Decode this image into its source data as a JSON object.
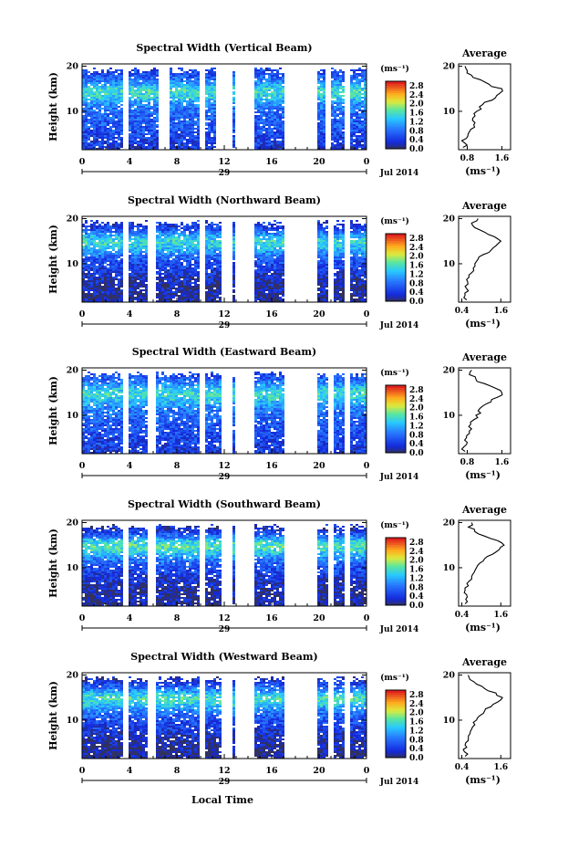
{
  "figure": {
    "bottom_label": "Local Time",
    "date_label": "Jul 2014",
    "day_label": "29",
    "unit_label": "(ms⁻¹)",
    "avg_title": "Average",
    "height_label": "Height (km)"
  },
  "chart_data": [
    {
      "type": "heatmap",
      "title": "Spectral Width (Vertical Beam)",
      "ylabel": "Height (km)",
      "x_ticks": [
        "0",
        "4",
        "8",
        "12",
        "16",
        "20",
        "0"
      ],
      "y_ticks": [
        "20",
        "10"
      ],
      "xlim": [
        0,
        24
      ],
      "ylim": [
        1.5,
        20.5
      ],
      "colorbar": {
        "ticks": [
          "2.8",
          "2.4",
          "2.0",
          "1.6",
          "1.2",
          "0.8",
          "0.4",
          "0.0"
        ],
        "range": [
          0.0,
          3.0
        ]
      },
      "data_gaps_hours": [
        [
          3.4,
          3.8
        ],
        [
          6.4,
          7.2
        ],
        [
          9.7,
          10.3
        ],
        [
          11.2,
          12.5
        ],
        [
          12.7,
          14.5
        ],
        [
          17.0,
          19.8
        ],
        [
          20.5,
          20.9
        ],
        [
          22.1,
          22.5
        ]
      ],
      "average_profile": {
        "title": "Average",
        "xlabel": "(ms⁻¹)",
        "x_ticks": [
          "0.8",
          "1.6"
        ],
        "xlim": [
          0.6,
          1.8
        ],
        "heights_km": [
          2,
          3,
          4,
          5,
          6,
          7,
          8,
          9,
          10,
          11,
          12,
          13,
          14,
          15,
          16,
          17,
          18,
          19,
          20
        ],
        "values": [
          0.7,
          0.74,
          0.78,
          0.82,
          0.88,
          0.95,
          0.92,
          0.98,
          1.02,
          1.08,
          1.2,
          1.45,
          1.55,
          1.6,
          1.3,
          1.1,
          0.9,
          0.8,
          0.75
        ]
      }
    },
    {
      "type": "heatmap",
      "title": "Spectral Width (Northward Beam)",
      "ylabel": "Height (km)",
      "x_ticks": [
        "0",
        "4",
        "8",
        "12",
        "16",
        "20",
        "0"
      ],
      "y_ticks": [
        "20",
        "10"
      ],
      "xlim": [
        0,
        24
      ],
      "ylim": [
        1.5,
        20.5
      ],
      "colorbar": {
        "ticks": [
          "2.8",
          "2.4",
          "2.0",
          "1.6",
          "1.2",
          "0.8",
          "0.4",
          "0.0"
        ],
        "range": [
          0.0,
          3.0
        ]
      },
      "data_gaps_hours": [
        [
          3.4,
          3.8
        ],
        [
          5.5,
          6.1
        ],
        [
          9.7,
          10.3
        ],
        [
          11.6,
          12.5
        ],
        [
          12.7,
          14.5
        ],
        [
          17.0,
          19.8
        ],
        [
          20.6,
          21.0
        ],
        [
          22.1,
          22.5
        ]
      ],
      "average_profile": {
        "title": "Average",
        "xlabel": "(ms⁻¹)",
        "x_ticks": [
          "0.4",
          "1.6"
        ],
        "xlim": [
          0.3,
          1.9
        ],
        "heights_km": [
          2,
          3,
          4,
          5,
          6,
          7,
          8,
          9,
          10,
          11,
          12,
          13,
          14,
          15,
          16,
          17,
          18,
          19,
          20
        ],
        "values": [
          0.55,
          0.5,
          0.6,
          0.5,
          0.58,
          0.62,
          0.7,
          0.75,
          0.8,
          0.9,
          1.05,
          1.3,
          1.45,
          1.6,
          1.4,
          1.1,
          0.8,
          0.7,
          0.9
        ]
      }
    },
    {
      "type": "heatmap",
      "title": "Spectral Width (Eastward Beam)",
      "ylabel": "Height (km)",
      "x_ticks": [
        "0",
        "4",
        "8",
        "12",
        "16",
        "20",
        "0"
      ],
      "y_ticks": [
        "20",
        "10"
      ],
      "xlim": [
        0,
        24
      ],
      "ylim": [
        1.5,
        20.5
      ],
      "colorbar": {
        "ticks": [
          "2.8",
          "2.4",
          "2.0",
          "1.6",
          "1.2",
          "0.8",
          "0.4",
          "0.0"
        ],
        "range": [
          0.0,
          3.0
        ]
      },
      "data_gaps_hours": [
        [
          3.4,
          3.8
        ],
        [
          5.5,
          6.1
        ],
        [
          9.7,
          10.3
        ],
        [
          11.6,
          12.5
        ],
        [
          12.7,
          14.5
        ],
        [
          17.0,
          19.8
        ],
        [
          20.6,
          21.0
        ],
        [
          22.1,
          22.5
        ]
      ],
      "average_profile": {
        "title": "Average",
        "xlabel": "(ms⁻¹)",
        "x_ticks": [
          "0.8",
          "1.6"
        ],
        "xlim": [
          0.6,
          1.8
        ],
        "heights_km": [
          2,
          3,
          4,
          5,
          6,
          7,
          8,
          9,
          10,
          11,
          12,
          13,
          14,
          15,
          16,
          17,
          18,
          19,
          20
        ],
        "values": [
          0.75,
          0.72,
          0.8,
          0.78,
          0.85,
          0.9,
          0.88,
          0.95,
          1.0,
          1.05,
          1.15,
          1.35,
          1.5,
          1.6,
          1.45,
          1.2,
          1.0,
          0.85,
          0.9
        ]
      }
    },
    {
      "type": "heatmap",
      "title": "Spectral Width (Southward Beam)",
      "ylabel": "Height (km)",
      "x_ticks": [
        "0",
        "4",
        "8",
        "12",
        "16",
        "20",
        "0"
      ],
      "y_ticks": [
        "20",
        "10"
      ],
      "xlim": [
        0,
        24
      ],
      "ylim": [
        1.5,
        20.5
      ],
      "colorbar": {
        "ticks": [
          "2.8",
          "2.4",
          "2.0",
          "1.6",
          "1.2",
          "0.8",
          "0.4",
          "0.0"
        ],
        "range": [
          0.0,
          3.0
        ]
      },
      "data_gaps_hours": [
        [
          3.4,
          3.8
        ],
        [
          5.5,
          6.1
        ],
        [
          9.7,
          10.3
        ],
        [
          11.6,
          12.5
        ],
        [
          12.7,
          14.5
        ],
        [
          17.0,
          19.8
        ],
        [
          20.6,
          21.0
        ],
        [
          22.1,
          22.5
        ]
      ],
      "average_profile": {
        "title": "Average",
        "xlabel": "(ms⁻¹)",
        "x_ticks": [
          "0.4",
          "1.6"
        ],
        "xlim": [
          0.3,
          1.9
        ],
        "heights_km": [
          2,
          3,
          4,
          5,
          6,
          7,
          8,
          9,
          10,
          11,
          12,
          13,
          14,
          15,
          16,
          17,
          18,
          19,
          20
        ],
        "values": [
          0.5,
          0.52,
          0.55,
          0.5,
          0.6,
          0.62,
          0.7,
          0.78,
          0.85,
          0.95,
          1.1,
          1.35,
          1.55,
          1.7,
          1.5,
          1.1,
          0.8,
          0.6,
          0.7
        ]
      }
    },
    {
      "type": "heatmap",
      "title": "Spectral Width (Westward Beam)",
      "ylabel": "Height (km)",
      "x_ticks": [
        "0",
        "4",
        "8",
        "12",
        "16",
        "20",
        "0"
      ],
      "y_ticks": [
        "20",
        "10"
      ],
      "xlim": [
        0,
        24
      ],
      "ylim": [
        1.5,
        20.5
      ],
      "colorbar": {
        "ticks": [
          "2.8",
          "2.4",
          "2.0",
          "1.6",
          "1.2",
          "0.8",
          "0.4",
          "0.0"
        ],
        "range": [
          0.0,
          3.0
        ]
      },
      "data_gaps_hours": [
        [
          3.4,
          3.8
        ],
        [
          5.5,
          6.1
        ],
        [
          9.7,
          10.3
        ],
        [
          11.6,
          12.5
        ],
        [
          12.7,
          14.5
        ],
        [
          17.0,
          19.8
        ],
        [
          20.6,
          21.0
        ],
        [
          22.1,
          22.5
        ]
      ],
      "average_profile": {
        "title": "Average",
        "xlabel": "(ms⁻¹)",
        "x_ticks": [
          "0.4",
          "1.6"
        ],
        "xlim": [
          0.3,
          1.9
        ],
        "heights_km": [
          2,
          3,
          4,
          5,
          6,
          7,
          8,
          9,
          10,
          11,
          12,
          13,
          14,
          15,
          16,
          17,
          18,
          19,
          20
        ],
        "values": [
          0.5,
          0.48,
          0.55,
          0.52,
          0.6,
          0.65,
          0.7,
          0.8,
          0.85,
          0.95,
          1.1,
          1.3,
          1.5,
          1.65,
          1.45,
          1.1,
          0.85,
          0.65,
          0.6
        ]
      }
    }
  ]
}
